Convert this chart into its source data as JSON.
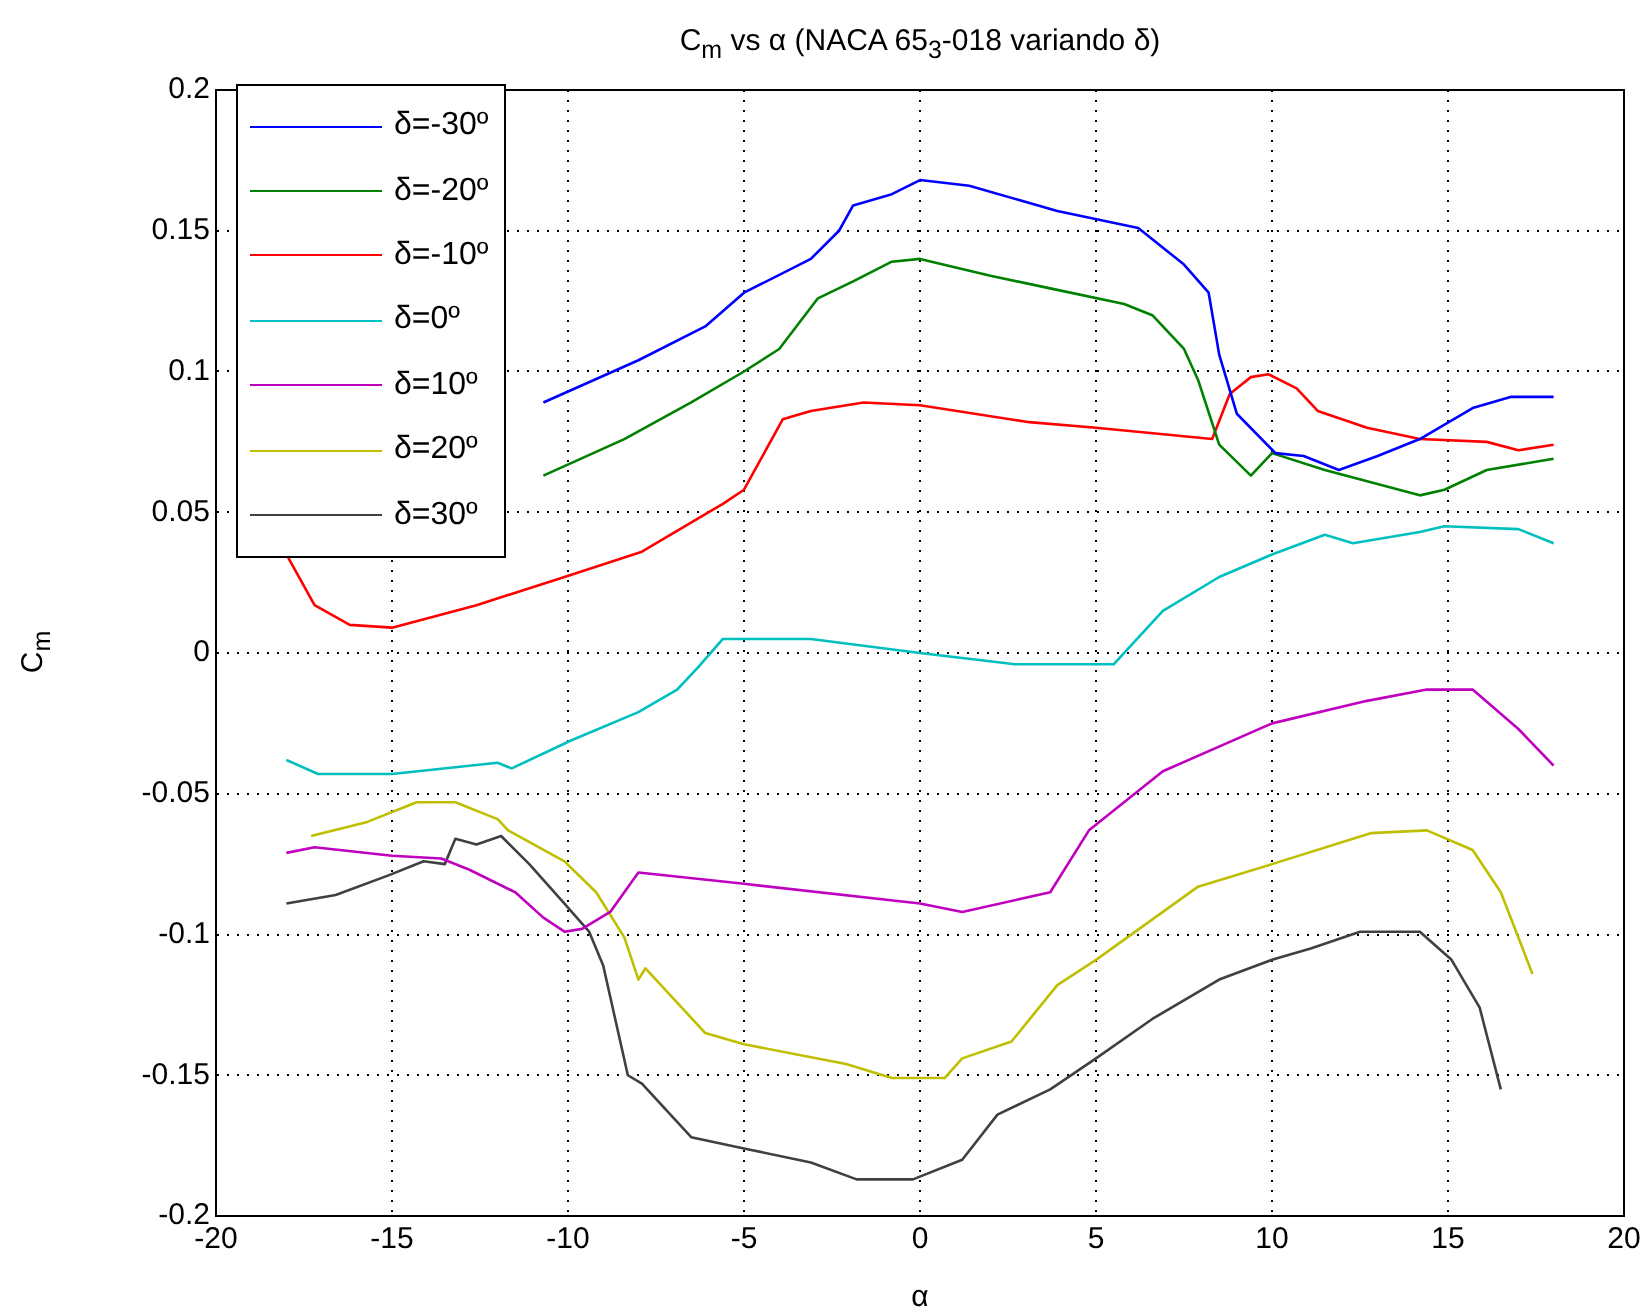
{
  "chart_data": {
    "type": "line",
    "title": "C$_{m}$ vs α (NACA 65$_{3}$-018 variando δ)",
    "xlabel": "α",
    "ylabel": "C$_{m}$",
    "xlim": [
      -20,
      20
    ],
    "xticks": [
      -20,
      -15,
      -10,
      -5,
      0,
      5,
      10,
      15,
      20
    ],
    "ylim": [
      -0.2,
      0.2
    ],
    "yticks": [
      -0.2,
      -0.15,
      -0.1,
      -0.05,
      0,
      0.05,
      0.1,
      0.15,
      0.2
    ],
    "grid": true,
    "legend": "top left",
    "marker": "none",
    "line_style": "solid",
    "series": [
      {
        "name": "δ=-30º",
        "color": "#0000ff",
        "x": [
          -10.7,
          -8,
          -6.1,
          -5,
          -3.1,
          -2.3,
          -1.9,
          -0.8,
          0,
          1.4,
          3.9,
          6.2,
          7.5,
          8.2,
          8.5,
          9,
          10.1,
          10.9,
          11.9,
          13,
          14.2,
          15.7,
          16.8,
          18
        ],
        "values": [
          0.089,
          0.104,
          0.116,
          0.128,
          0.14,
          0.15,
          0.159,
          0.163,
          0.168,
          0.166,
          0.157,
          0.151,
          0.138,
          0.128,
          0.106,
          0.085,
          0.071,
          0.07,
          0.065,
          0.07,
          0.076,
          0.087,
          0.091,
          0.091
        ]
      },
      {
        "name": "δ=-20º",
        "color": "#008000",
        "x": [
          -10.7,
          -8.4,
          -6.5,
          -5,
          -4,
          -2.9,
          -1.9,
          -0.8,
          0,
          2,
          3.9,
          5.8,
          6.6,
          7.5,
          7.9,
          8.5,
          9.4,
          10,
          11.5,
          14.2,
          14.9,
          16.1,
          18
        ],
        "values": [
          0.063,
          0.076,
          0.089,
          0.1,
          0.108,
          0.126,
          0.132,
          0.139,
          0.14,
          0.134,
          0.129,
          0.124,
          0.12,
          0.108,
          0.097,
          0.074,
          0.063,
          0.071,
          0.065,
          0.056,
          0.058,
          0.065,
          0.069
        ]
      },
      {
        "name": "δ=-10º",
        "color": "#ff0000",
        "x": [
          -18,
          -17.2,
          -16.2,
          -15,
          -12.6,
          -10.1,
          -7.9,
          -5.6,
          -5,
          -3.9,
          -3.1,
          -1.6,
          0,
          3.1,
          5,
          8.3,
          8.8,
          9.4,
          9.9,
          10.7,
          11.3,
          12.7,
          14.2,
          16.1,
          17,
          18
        ],
        "values": [
          0.035,
          0.017,
          0.01,
          0.009,
          0.017,
          0.027,
          0.036,
          0.053,
          0.058,
          0.083,
          0.086,
          0.089,
          0.088,
          0.082,
          0.08,
          0.076,
          0.092,
          0.098,
          0.099,
          0.094,
          0.086,
          0.08,
          0.076,
          0.075,
          0.072,
          0.074
        ]
      },
      {
        "name": "δ=0º",
        "color": "#00bfbf",
        "x": [
          -18,
          -17.1,
          -15,
          -12,
          -11.6,
          -9.9,
          -8,
          -6.9,
          -6.3,
          -5.6,
          -3.1,
          0,
          2.7,
          5.5,
          6.9,
          8.5,
          10,
          11.5,
          12.3,
          14.2,
          14.9,
          17,
          18
        ],
        "values": [
          -0.038,
          -0.043,
          -0.043,
          -0.039,
          -0.041,
          -0.031,
          -0.021,
          -0.013,
          -0.005,
          0.005,
          0.005,
          0,
          -0.004,
          -0.004,
          0.015,
          0.027,
          0.035,
          0.042,
          0.039,
          0.043,
          0.045,
          0.044,
          0.039
        ]
      },
      {
        "name": "δ=10º",
        "color": "#bf00bf",
        "x": [
          -18,
          -17.2,
          -15,
          -13.6,
          -12.8,
          -11.5,
          -10.7,
          -10.1,
          -9.6,
          -8.8,
          -8,
          -5,
          0,
          1.2,
          3.7,
          4.8,
          6.9,
          10,
          12.7,
          14.4,
          15.7,
          17,
          18
        ],
        "values": [
          -0.071,
          -0.069,
          -0.072,
          -0.073,
          -0.077,
          -0.085,
          -0.094,
          -0.099,
          -0.098,
          -0.092,
          -0.078,
          -0.082,
          -0.089,
          -0.092,
          -0.085,
          -0.063,
          -0.042,
          -0.025,
          -0.017,
          -0.013,
          -0.013,
          -0.027,
          -0.04
        ]
      },
      {
        "name": "δ=20º",
        "color": "#bfbf00",
        "x": [
          -17.3,
          -15.7,
          -14.3,
          -13.2,
          -12,
          -11.7,
          -10.1,
          -9.2,
          -8.4,
          -8,
          -7.8,
          -6.1,
          -5,
          -2.1,
          -0.8,
          0.3,
          0.7,
          1.2,
          2.6,
          3.9,
          5,
          7.9,
          10,
          12.8,
          14.4,
          15.7,
          16.5,
          17.4
        ],
        "values": [
          -0.065,
          -0.06,
          -0.053,
          -0.053,
          -0.059,
          -0.063,
          -0.074,
          -0.085,
          -0.101,
          -0.116,
          -0.112,
          -0.135,
          -0.139,
          -0.146,
          -0.151,
          -0.151,
          -0.151,
          -0.144,
          -0.138,
          -0.118,
          -0.109,
          -0.083,
          -0.075,
          -0.064,
          -0.063,
          -0.07,
          -0.085,
          -0.114
        ]
      },
      {
        "name": "δ=30º",
        "color": "#404040",
        "x": [
          -18,
          -16.6,
          -15.1,
          -14.1,
          -13.5,
          -13.2,
          -12.6,
          -11.9,
          -11.1,
          -10.1,
          -9.4,
          -9,
          -8.3,
          -7.9,
          -6.5,
          -5,
          -3.1,
          -1.8,
          -0.2,
          1.2,
          2.2,
          3.7,
          5,
          6.6,
          8.5,
          10,
          11.1,
          12.5,
          14.2,
          15.1,
          15.9,
          16.5
        ],
        "values": [
          -0.089,
          -0.086,
          -0.079,
          -0.074,
          -0.075,
          -0.066,
          -0.068,
          -0.065,
          -0.075,
          -0.089,
          -0.099,
          -0.111,
          -0.15,
          -0.153,
          -0.172,
          -0.176,
          -0.181,
          -0.187,
          -0.187,
          -0.18,
          -0.164,
          -0.155,
          -0.144,
          -0.13,
          -0.116,
          -0.109,
          -0.105,
          -0.099,
          -0.099,
          -0.109,
          -0.126,
          -0.155
        ]
      }
    ]
  }
}
